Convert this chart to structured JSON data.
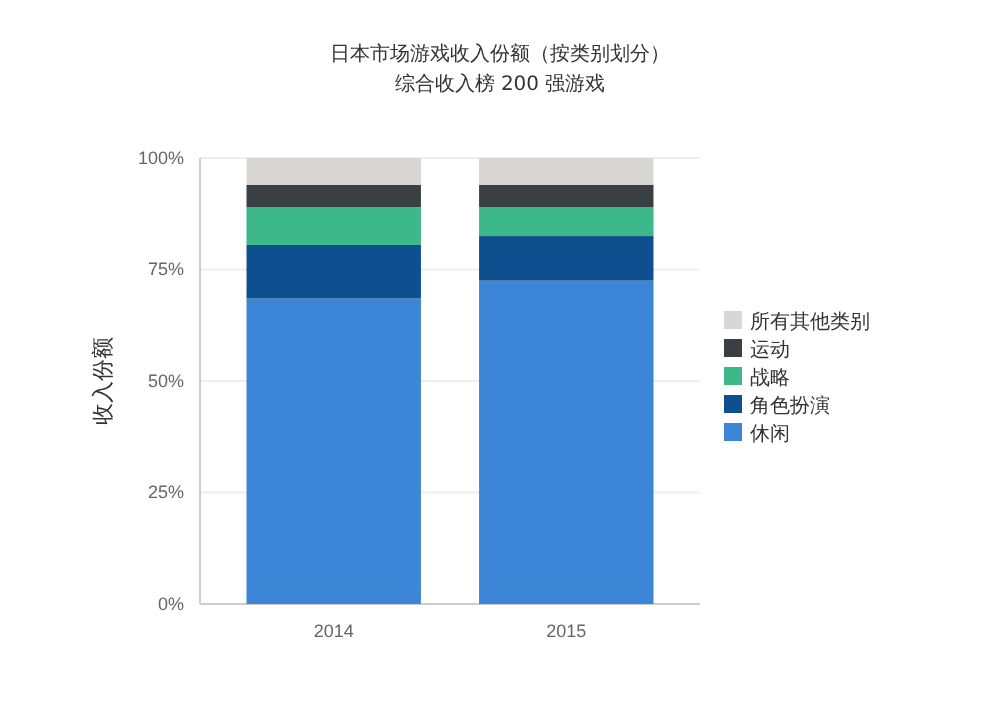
{
  "chart_data": {
    "type": "bar",
    "title": "日本市场游戏收入份额（按类别划分）",
    "subtitle": "综合收入榜 200 强游戏",
    "ylabel": "收入份额",
    "categories": [
      "2014",
      "2015"
    ],
    "stacked": true,
    "series": [
      {
        "name": "休闲",
        "color": "#3d85d6",
        "values": [
          68.5,
          72.5
        ]
      },
      {
        "name": "角色扮演",
        "color": "#0e4f8f",
        "values": [
          12,
          10
        ]
      },
      {
        "name": "战略",
        "color": "#3cb88a",
        "values": [
          8.5,
          6.5
        ]
      },
      {
        "name": "运动",
        "color": "#3a3f44",
        "values": [
          5,
          5
        ]
      },
      {
        "name": "所有其他类别",
        "color": "#d9d6d6",
        "values": [
          6,
          6
        ]
      }
    ],
    "ylim": [
      0,
      100
    ],
    "yticks": [
      {
        "value": 0,
        "label": "0%"
      },
      {
        "value": 25,
        "label": "25%"
      },
      {
        "value": 50,
        "label": "50%"
      },
      {
        "value": 75,
        "label": "75%"
      },
      {
        "value": 100,
        "label": "100%"
      }
    ],
    "grid": "y",
    "legend": "right"
  }
}
